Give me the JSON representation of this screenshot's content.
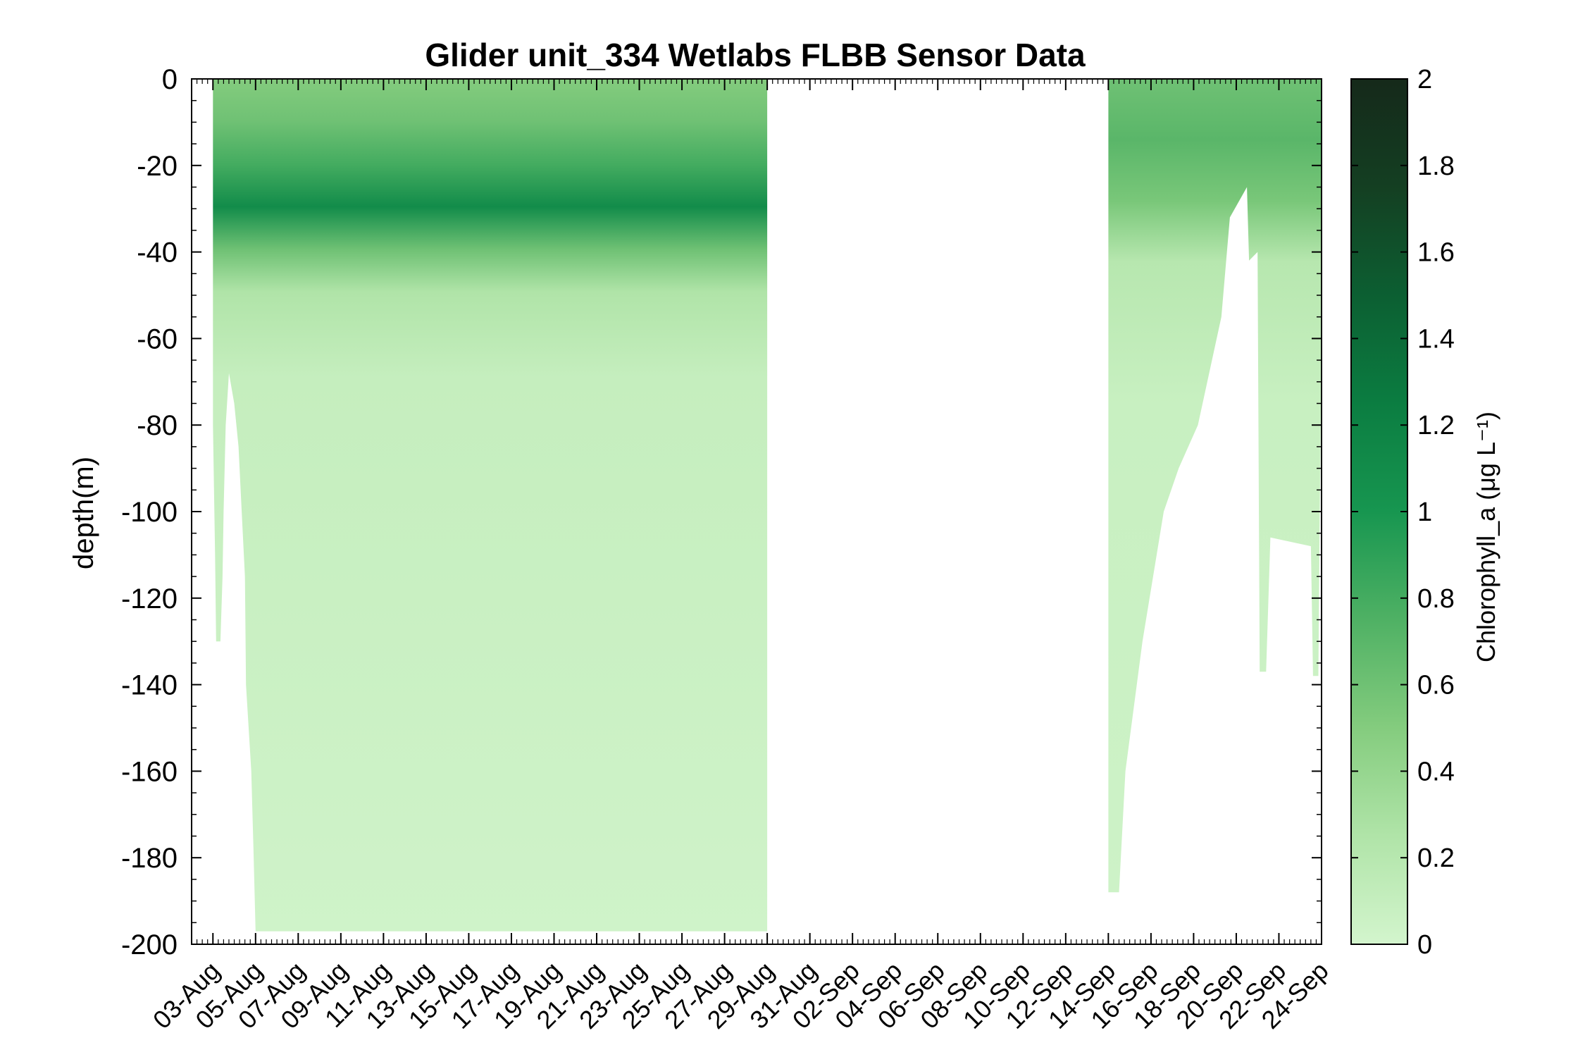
{
  "chart_data": {
    "type": "scatter",
    "title": "Glider unit_334 Wetlabs FLBB Sensor Data",
    "xlabel": "",
    "ylabel": "depth(m)",
    "x_tick_labels": [
      "03-Aug",
      "05-Aug",
      "07-Aug",
      "09-Aug",
      "11-Aug",
      "13-Aug",
      "15-Aug",
      "17-Aug",
      "19-Aug",
      "21-Aug",
      "23-Aug",
      "25-Aug",
      "27-Aug",
      "29-Aug",
      "31-Aug",
      "02-Sep",
      "04-Sep",
      "06-Sep",
      "08-Sep",
      "10-Sep",
      "12-Sep",
      "14-Sep",
      "16-Sep",
      "18-Sep",
      "20-Sep",
      "22-Sep",
      "24-Sep"
    ],
    "x_tick_dates": [
      "2016-08-03",
      "2016-08-05",
      "2016-08-07",
      "2016-08-09",
      "2016-08-11",
      "2016-08-13",
      "2016-08-15",
      "2016-08-17",
      "2016-08-19",
      "2016-08-21",
      "2016-08-23",
      "2016-08-25",
      "2016-08-27",
      "2016-08-29",
      "2016-08-31",
      "2016-09-02",
      "2016-09-04",
      "2016-09-06",
      "2016-09-08",
      "2016-09-10",
      "2016-09-12",
      "2016-09-14",
      "2016-09-16",
      "2016-09-18",
      "2016-09-20",
      "2016-09-22",
      "2016-09-24"
    ],
    "xlim": [
      "2016-08-02",
      "2016-09-24"
    ],
    "ylim": [
      -200,
      0
    ],
    "y_ticks": [
      0,
      -20,
      -40,
      -60,
      -80,
      -100,
      -120,
      -140,
      -160,
      -180,
      -200
    ],
    "colorbar": {
      "label": "Chlorophyll_a",
      "unit": "μg L⁻¹",
      "range": [
        0,
        2
      ],
      "ticks": [
        "0",
        "0.2",
        "0.4",
        "0.6",
        "0.8",
        "1",
        "1.2",
        "1.4",
        "1.6",
        "1.8",
        "2"
      ],
      "colormap": [
        "#d3f5cd",
        "#b0e4a8",
        "#84cc7e",
        "#4fb164",
        "#179650",
        "#0b7d41",
        "#0c5f32",
        "#143f22",
        "#15291a"
      ]
    },
    "segments": [
      {
        "start": "2016-08-03",
        "end": "2016-08-29",
        "max_depth": -197,
        "description_rows": [
          {
            "depth": 0,
            "chl": 0.5
          },
          {
            "depth": -10,
            "chl": 0.6
          },
          {
            "depth": -20,
            "chl": 0.8
          },
          {
            "depth": -30,
            "chl": 1.1
          },
          {
            "depth": -40,
            "chl": 0.6
          },
          {
            "depth": -50,
            "chl": 0.25
          },
          {
            "depth": -70,
            "chl": 0.1
          },
          {
            "depth": -200,
            "chl": 0.03
          }
        ]
      },
      {
        "start": "2016-09-14",
        "end": "2016-09-24",
        "max_depth": -138,
        "description_rows": [
          {
            "depth": 0,
            "chl": 0.6
          },
          {
            "depth": -15,
            "chl": 0.7
          },
          {
            "depth": -30,
            "chl": 0.55
          },
          {
            "depth": -45,
            "chl": 0.2
          },
          {
            "depth": -80,
            "chl": 0.08
          },
          {
            "depth": -200,
            "chl": 0.04
          }
        ]
      }
    ],
    "grid": false,
    "legend": "colorbar-right"
  }
}
